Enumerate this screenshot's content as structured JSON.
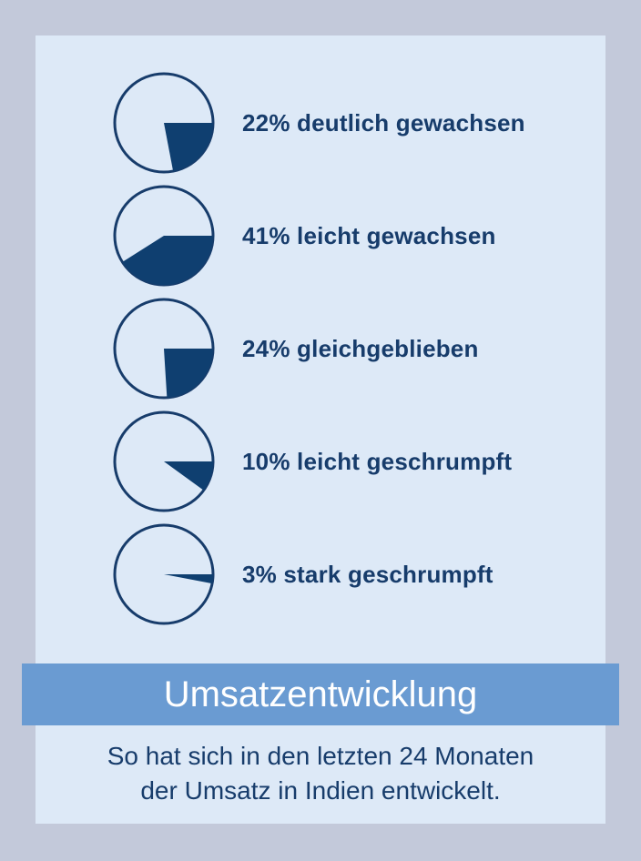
{
  "colors": {
    "outer_background": "#c3c9da",
    "panel_background": "#dde9f7",
    "pie_fill": "#0f3f70",
    "pie_outline": "#173c6b",
    "banner_background": "#6a9bd2",
    "banner_text": "#ffffff",
    "text": "#173c6b"
  },
  "header": {
    "title": "Umsatzentwicklung",
    "subtitle_line1": "So hat sich in den letzten 24 Monaten",
    "subtitle_line2": "der Umsatz in Indien entwickelt."
  },
  "chart_data": {
    "type": "pie",
    "title": "Umsatzentwicklung",
    "subtitle": "So hat sich in den letzten 24 Monaten der Umsatz in Indien entwickelt.",
    "unit": "%",
    "items": [
      {
        "value": 22,
        "label": "22% deutlich gewachsen",
        "category": "deutlich gewachsen"
      },
      {
        "value": 41,
        "label": "41% leicht gewachsen",
        "category": "leicht gewachsen"
      },
      {
        "value": 24,
        "label": "24% gleichgeblieben",
        "category": "gleichgeblieben"
      },
      {
        "value": 10,
        "label": "10% leicht geschrumpft",
        "category": "leicht geschrumpft"
      },
      {
        "value": 3,
        "label": "3% stark geschrumpft",
        "category": "stark geschrumpft"
      }
    ]
  }
}
